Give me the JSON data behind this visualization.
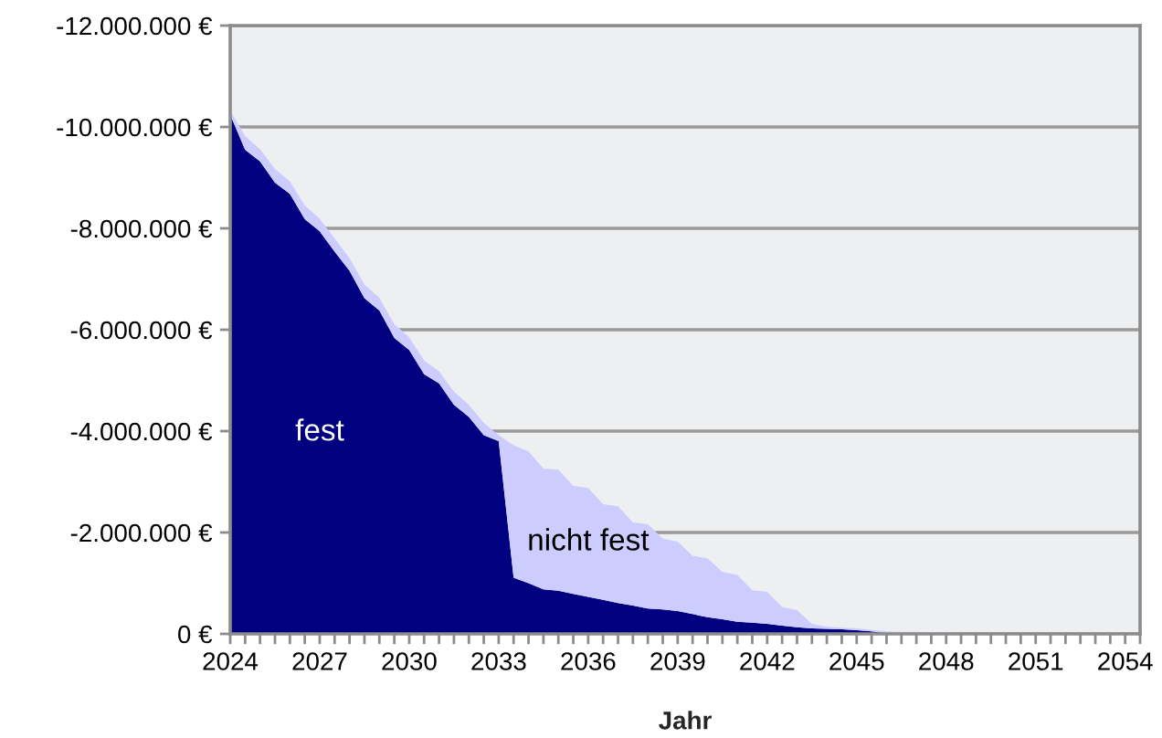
{
  "chart_data": {
    "type": "area",
    "stacked": true,
    "xlabel": "Jahr",
    "x": [
      2024,
      2024.5,
      2025,
      2025.5,
      2026,
      2026.5,
      2027,
      2027.5,
      2028,
      2028.5,
      2029,
      2029.5,
      2030,
      2030.5,
      2031,
      2031.5,
      2032,
      2032.5,
      2033,
      2033.5,
      2034,
      2034.5,
      2035,
      2035.5,
      2036,
      2036.5,
      2037,
      2037.5,
      2038,
      2038.5,
      2039,
      2039.5,
      2040,
      2040.5,
      2041,
      2041.5,
      2042,
      2042.5,
      2043,
      2043.5,
      2044,
      2044.5,
      2045,
      2045.5,
      2046,
      2046.5,
      2047,
      2047.5,
      2048,
      2048.5,
      2049,
      2049.5,
      2050,
      2050.5,
      2051,
      2051.5,
      2052,
      2052.5,
      2053,
      2053.5,
      2054,
      2054.5
    ],
    "series": [
      {
        "name": "fest",
        "color": "#000080",
        "values": [
          -10240000,
          -9550000,
          -9320000,
          -8900000,
          -8680000,
          -8180000,
          -7940000,
          -7540000,
          -7160000,
          -6620000,
          -6380000,
          -5840000,
          -5600000,
          -5120000,
          -4940000,
          -4520000,
          -4280000,
          -3920000,
          -3800000,
          -1110000,
          -1000000,
          -880000,
          -850000,
          -790000,
          -730000,
          -670000,
          -610000,
          -560000,
          -500000,
          -480000,
          -450000,
          -390000,
          -330000,
          -290000,
          -240000,
          -220000,
          -200000,
          -160000,
          -130000,
          -110000,
          -100000,
          -90000,
          -70000,
          -50000,
          -10000,
          0,
          0,
          0,
          0,
          0,
          0,
          0,
          0,
          0,
          0,
          0,
          0,
          0,
          0,
          0,
          0,
          0
        ]
      },
      {
        "name": "nicht fest",
        "color": "#ccccff",
        "values": [
          -80000,
          -270000,
          -240000,
          -270000,
          -250000,
          -270000,
          -250000,
          -260000,
          -250000,
          -270000,
          -250000,
          -270000,
          -250000,
          -270000,
          -240000,
          -260000,
          -240000,
          -240000,
          -120000,
          -2610000,
          -2600000,
          -2380000,
          -2390000,
          -2130000,
          -2150000,
          -1890000,
          -1910000,
          -1640000,
          -1660000,
          -1400000,
          -1370000,
          -1150000,
          -1160000,
          -930000,
          -920000,
          -640000,
          -630000,
          -370000,
          -340000,
          -90000,
          -40000,
          -30000,
          -40000,
          -30000,
          -40000,
          -40000,
          -40000,
          -30000,
          -30000,
          -20000,
          0,
          0,
          0,
          0,
          0,
          0,
          0,
          0,
          0,
          0,
          0,
          0
        ]
      }
    ],
    "xlim": [
      2024,
      2054.5
    ],
    "xticks": [
      2024,
      {
        "value": 2024.5,
        "label": null
      },
      {
        "value": 2025,
        "label": null
      },
      {
        "value": 2025.5,
        "label": null
      },
      {
        "value": 2026,
        "label": null
      },
      {
        "value": 2026.5,
        "label": null
      },
      2027,
      {
        "value": 2027.5,
        "label": null
      },
      {
        "value": 2028,
        "label": null
      },
      {
        "value": 2028.5,
        "label": null
      },
      {
        "value": 2029,
        "label": null
      },
      {
        "value": 2029.5,
        "label": null
      },
      2030,
      {
        "value": 2030.5,
        "label": null
      },
      {
        "value": 2031,
        "label": null
      },
      {
        "value": 2031.5,
        "label": null
      },
      {
        "value": 2032,
        "label": null
      },
      {
        "value": 2032.5,
        "label": null
      },
      2033,
      {
        "value": 2033.5,
        "label": null
      },
      {
        "value": 2034,
        "label": null
      },
      {
        "value": 2034.5,
        "label": null
      },
      {
        "value": 2035,
        "label": null
      },
      {
        "value": 2035.5,
        "label": null
      },
      2036,
      {
        "value": 2036.5,
        "label": null
      },
      {
        "value": 2037,
        "label": null
      },
      {
        "value": 2037.5,
        "label": null
      },
      {
        "value": 2038,
        "label": null
      },
      {
        "value": 2038.5,
        "label": null
      },
      2039,
      {
        "value": 2039.5,
        "label": null
      },
      {
        "value": 2040,
        "label": null
      },
      {
        "value": 2040.5,
        "label": null
      },
      {
        "value": 2041,
        "label": null
      },
      {
        "value": 2041.5,
        "label": null
      },
      2042,
      {
        "value": 2042.5,
        "label": null
      },
      {
        "value": 2043,
        "label": null
      },
      {
        "value": 2043.5,
        "label": null
      },
      {
        "value": 2044,
        "label": null
      },
      {
        "value": 2044.5,
        "label": null
      },
      2045,
      {
        "value": 2045.5,
        "label": null
      },
      {
        "value": 2046,
        "label": null
      },
      {
        "value": 2046.5,
        "label": null
      },
      {
        "value": 2047,
        "label": null
      },
      {
        "value": 2047.5,
        "label": null
      },
      2048,
      {
        "value": 2048.5,
        "label": null
      },
      {
        "value": 2049,
        "label": null
      },
      {
        "value": 2049.5,
        "label": null
      },
      {
        "value": 2050,
        "label": null
      },
      {
        "value": 2050.5,
        "label": null
      },
      2051,
      {
        "value": 2051.5,
        "label": null
      },
      {
        "value": 2052,
        "label": null
      },
      {
        "value": 2052.5,
        "label": null
      },
      {
        "value": 2053,
        "label": null
      },
      {
        "value": 2053.5,
        "label": null
      },
      2054,
      {
        "value": 2054.5,
        "label": null
      }
    ],
    "ylim": [
      0,
      -12000000
    ],
    "yticks": [
      {
        "value": 0,
        "label": "0 €"
      },
      {
        "value": -2000000,
        "label": "-2.000.000 €"
      },
      {
        "value": -4000000,
        "label": "-4.000.000 €"
      },
      {
        "value": -6000000,
        "label": "-6.000.000 €"
      },
      {
        "value": -8000000,
        "label": "-8.000.000 €"
      },
      {
        "value": -10000000,
        "label": "-10.000.000 €"
      },
      {
        "value": -12000000,
        "label": "-12.000.000 €"
      }
    ],
    "grid": "y"
  }
}
